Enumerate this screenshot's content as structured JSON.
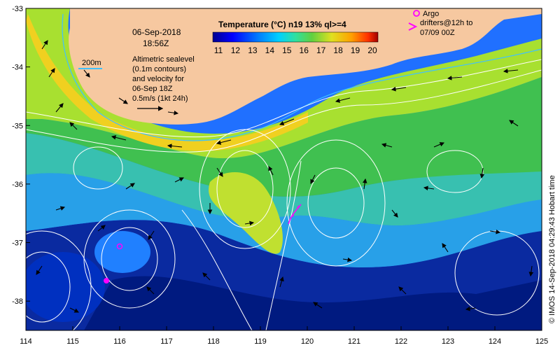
{
  "map": {
    "lon_ticks": [
      114,
      115,
      116,
      117,
      118,
      119,
      120,
      121,
      122,
      123,
      124,
      125
    ],
    "lat_ticks": [
      -33,
      -34,
      -35,
      -36,
      -37,
      -38
    ],
    "lon_range": [
      114,
      125
    ],
    "lat_range": [
      -38.5,
      -33
    ]
  },
  "header": {
    "date": "06-Sep-2018",
    "time": "18:56Z"
  },
  "scale_label": "200m",
  "altimetry": {
    "line1": "Altimetric sealevel",
    "line2": "(0.1m contours)",
    "line3": "and velocity for",
    "line4": "06-Sep 18Z",
    "line5": "0.5m/s (1kt 24h)"
  },
  "colorbar": {
    "title": "Temperature (°C) n19 13% ql>=4",
    "ticks": [
      "11",
      "12",
      "13",
      "14",
      "15",
      "16",
      "17",
      "18",
      "19",
      "20"
    ],
    "colors": [
      "#00008f",
      "#0000ff",
      "#0066ff",
      "#00bfff",
      "#20e0a0",
      "#40d040",
      "#c0e020",
      "#ffd000",
      "#ff6000",
      "#b00000"
    ]
  },
  "argo_legend": {
    "line1": "Argo",
    "line2": "drifters@12h to",
    "line3": "07/09 00Z"
  },
  "credit": "© IMOS 14-Sep-2018 04:29:43 Hobart time",
  "colors": {
    "land": "#f6c8a0",
    "argo": "#ff00ff",
    "contour": "#ffffff",
    "isobath": "#40c0ff"
  }
}
